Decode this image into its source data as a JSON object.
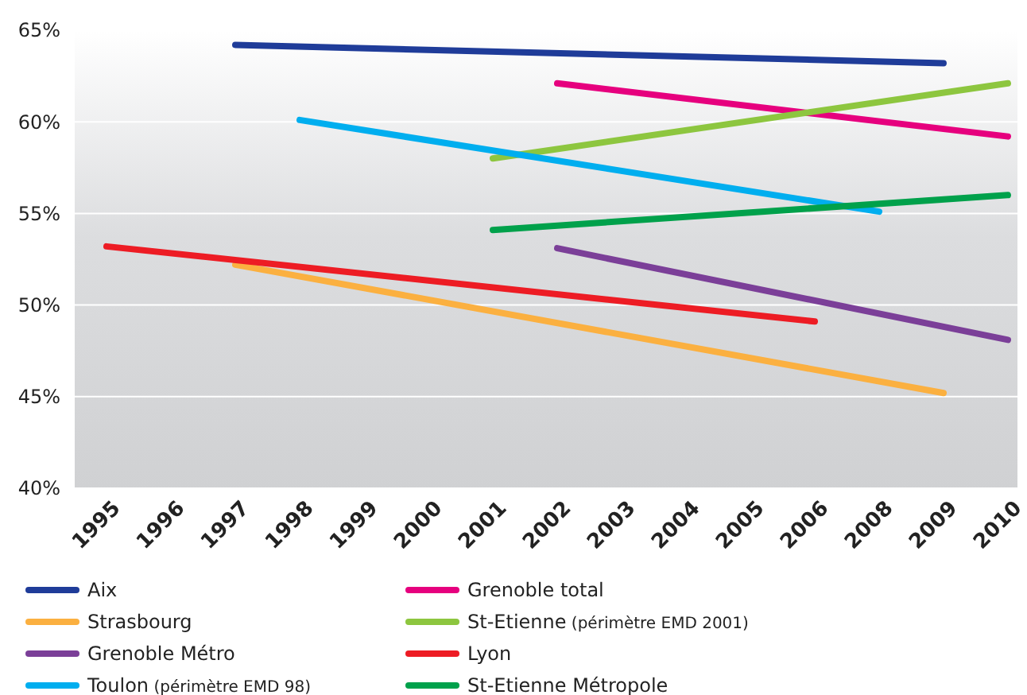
{
  "chart_data": {
    "type": "line",
    "categories": [
      "1995",
      "1996",
      "1997",
      "1998",
      "1999",
      "2000",
      "2001",
      "2002",
      "2003",
      "2004",
      "2005",
      "2006",
      "2008",
      "2009",
      "2010"
    ],
    "ylim": [
      40,
      65
    ],
    "yticks": [
      {
        "value": 40,
        "label": "40%"
      },
      {
        "value": 45,
        "label": "45%"
      },
      {
        "value": 50,
        "label": "50%"
      },
      {
        "value": 55,
        "label": "55%"
      },
      {
        "value": 60,
        "label": "60%"
      },
      {
        "value": 65,
        "label": "65%"
      }
    ],
    "grid": "y",
    "legend": "bottom",
    "series": [
      {
        "name": "Aix",
        "color": "#1f3c99",
        "values": [
          null,
          null,
          64.2,
          null,
          null,
          null,
          null,
          null,
          null,
          null,
          null,
          null,
          null,
          63.2,
          null
        ]
      },
      {
        "name": "Grenoble total",
        "color": "#e6007e",
        "values": [
          null,
          null,
          null,
          null,
          null,
          null,
          null,
          62.1,
          null,
          null,
          null,
          null,
          null,
          null,
          59.2
        ]
      },
      {
        "name": "Strasbourg",
        "color": "#fbb040",
        "values": [
          null,
          null,
          52.2,
          null,
          null,
          null,
          null,
          null,
          null,
          null,
          null,
          null,
          null,
          45.2,
          null
        ]
      },
      {
        "name": "St-Etienne (périmètre EMD 2001)",
        "color": "#8dc63f",
        "values": [
          null,
          null,
          null,
          null,
          null,
          null,
          58.0,
          null,
          null,
          null,
          null,
          null,
          null,
          null,
          62.1
        ]
      },
      {
        "name": "Grenoble Métro",
        "color": "#7b3f98",
        "values": [
          null,
          null,
          null,
          null,
          null,
          null,
          null,
          53.1,
          null,
          null,
          null,
          null,
          null,
          null,
          48.1
        ]
      },
      {
        "name": "Lyon",
        "color": "#ed1c24",
        "values": [
          53.2,
          null,
          null,
          null,
          null,
          null,
          null,
          null,
          null,
          null,
          null,
          49.1,
          null,
          null,
          null
        ]
      },
      {
        "name": "Toulon (périmètre EMD 98)",
        "color": "#00aeef",
        "values": [
          null,
          null,
          null,
          60.1,
          null,
          null,
          null,
          null,
          null,
          null,
          null,
          null,
          55.1,
          null,
          null
        ]
      },
      {
        "name": "St-Etienne Métropole",
        "color": "#00a14b",
        "values": [
          null,
          null,
          null,
          null,
          null,
          null,
          54.1,
          null,
          null,
          null,
          null,
          null,
          null,
          null,
          56.0
        ]
      }
    ]
  }
}
